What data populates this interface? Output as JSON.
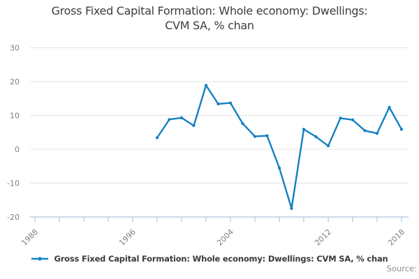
{
  "title": {
    "line1": "Gross Fixed Capital Formation: Whole economy: Dwellings:",
    "line2": "CVM SA, % chan"
  },
  "legend": {
    "label": "Gross Fixed Capital Formation: Whole economy: Dwellings: CVM SA, % chan",
    "marker": "line-with-dot"
  },
  "source": {
    "label": "Source:"
  },
  "colors": {
    "line": "#1380c4",
    "axis": "#afc3dc",
    "grid": "#e4e4e4",
    "tick_label": "#7f7f7f",
    "title_text": "#3d3d3d",
    "legend_text": "#3a3a3a",
    "source_text": "#8c8c8c"
  },
  "chart_data": {
    "type": "line",
    "title": "Gross Fixed Capital Formation: Whole economy: Dwellings: CVM SA, % chan",
    "series_name": "Gross Fixed Capital Formation: Whole economy: Dwellings: CVM SA, % chan",
    "x": [
      1998,
      1999,
      2000,
      2001,
      2002,
      2003,
      2004,
      2005,
      2006,
      2007,
      2008,
      2009,
      2010,
      2011,
      2012,
      2013,
      2014,
      2015,
      2016,
      2017,
      2018
    ],
    "values": [
      3.4,
      8.8,
      9.3,
      7.0,
      18.9,
      13.4,
      13.7,
      7.6,
      3.8,
      4.0,
      -5.5,
      -17.5,
      5.9,
      3.7,
      1.0,
      9.2,
      8.7,
      5.5,
      4.7,
      12.4,
      5.9
    ],
    "ylim": [
      -20,
      30
    ],
    "y_ticks": [
      30,
      20,
      10,
      0,
      -10,
      -20
    ],
    "x_axis": {
      "start": 1988,
      "end": 2018,
      "tick_interval": 2,
      "labeled_ticks": [
        1988,
        1996,
        2004,
        2012,
        2018
      ]
    },
    "grid": "horizontal-only",
    "legend_position": "bottom",
    "marker": "dot"
  }
}
